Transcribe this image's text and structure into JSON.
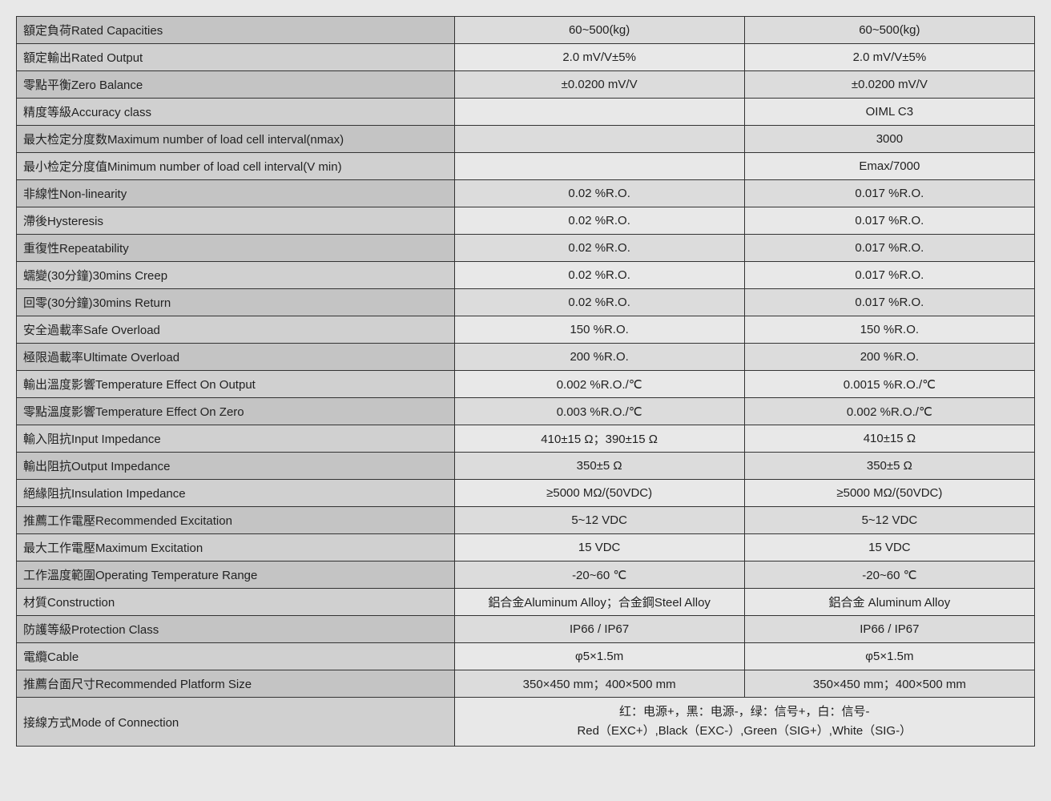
{
  "table": {
    "colwidths": [
      "43%",
      "28.5%",
      "28.5%"
    ],
    "border_color": "#333333",
    "row_bg_light": "#e8e8e8",
    "row_bg_dark": "#dcdcdc",
    "label_bg_light": "#d0d0d0",
    "label_bg_dark": "#c4c4c4",
    "font_size": 15,
    "rows": [
      {
        "shade": true,
        "label": "額定負荷Rated Capacities",
        "v1": "60~500(kg)",
        "v2": "60~500(kg)"
      },
      {
        "shade": false,
        "label": "額定輸出Rated Output",
        "v1": "2.0 mV/V±5%",
        "v2": "2.0 mV/V±5%"
      },
      {
        "shade": true,
        "label": "零點平衡Zero Balance",
        "v1": "±0.0200 mV/V",
        "v2": "±0.0200 mV/V"
      },
      {
        "shade": false,
        "label": "精度等級Accuracy class",
        "v1": "",
        "v2": "OIML C3"
      },
      {
        "shade": true,
        "label": "最大检定分度数Maximum number of load cell interval(nmax)",
        "v1": "",
        "v2": "3000"
      },
      {
        "shade": false,
        "label": "最小检定分度值Minimum number of load cell interval(V min)",
        "v1": "",
        "v2": "Emax/7000"
      },
      {
        "shade": true,
        "label": "非線性Non-linearity",
        "v1": "0.02 %R.O.",
        "v2": "0.017 %R.O."
      },
      {
        "shade": false,
        "label": "滯後Hysteresis",
        "v1": "0.02 %R.O.",
        "v2": "0.017 %R.O."
      },
      {
        "shade": true,
        "label": "重復性Repeatability",
        "v1": "0.02 %R.O.",
        "v2": "0.017 %R.O."
      },
      {
        "shade": false,
        "label": "蠕變(30分鐘)30mins Creep",
        "v1": "0.02 %R.O.",
        "v2": "0.017 %R.O."
      },
      {
        "shade": true,
        "label": "回零(30分鐘)30mins Return",
        "v1": "0.02 %R.O.",
        "v2": "0.017 %R.O."
      },
      {
        "shade": false,
        "label": "安全過載率Safe Overload",
        "v1": "150 %R.O.",
        "v2": "150 %R.O."
      },
      {
        "shade": true,
        "label": "極限過載率Ultimate Overload",
        "v1": "200 %R.O.",
        "v2": "200 %R.O."
      },
      {
        "shade": false,
        "label": "輸出溫度影響Temperature Effect On Output",
        "v1": "0.002 %R.O./℃",
        "v2": "0.0015 %R.O./℃"
      },
      {
        "shade": true,
        "label": "零點溫度影響Temperature Effect On Zero",
        "v1": "0.003 %R.O./℃",
        "v2": "0.002 %R.O./℃"
      },
      {
        "shade": false,
        "label": "輸入阻抗Input Impedance",
        "v1": "410±15 Ω；390±15 Ω",
        "v2": "410±15 Ω"
      },
      {
        "shade": true,
        "label": "輸出阻抗Output Impedance",
        "v1": "350±5 Ω",
        "v2": "350±5 Ω"
      },
      {
        "shade": false,
        "label": "絕緣阻抗Insulation Impedance",
        "v1": "≥5000 MΩ/(50VDC)",
        "v2": "≥5000 MΩ/(50VDC)"
      },
      {
        "shade": true,
        "label": "推薦工作電壓Recommended Excitation",
        "v1": "5~12 VDC",
        "v2": "5~12 VDC"
      },
      {
        "shade": false,
        "label": "最大工作電壓Maximum Excitation",
        "v1": "15 VDC",
        "v2": "15 VDC"
      },
      {
        "shade": true,
        "label": "工作溫度範圍Operating Temperature Range",
        "v1": "-20~60 ℃",
        "v2": "-20~60 ℃"
      },
      {
        "shade": false,
        "label": "材質Construction",
        "v1": "鋁合金Aluminum Alloy；合金鋼Steel Alloy",
        "v2": "鋁合金 Aluminum Alloy"
      },
      {
        "shade": true,
        "label": "防護等級Protection Class",
        "v1": "IP66 / IP67",
        "v2": "IP66 / IP67"
      },
      {
        "shade": false,
        "label": "電纜Cable",
        "v1": "φ5×1.5m",
        "v2": "φ5×1.5m"
      },
      {
        "shade": true,
        "label": "推薦台面尺寸Recommended Platform Size",
        "v1": "350×450 mm；400×500 mm",
        "v2": "350×450 mm；400×500 mm"
      }
    ],
    "last_row": {
      "shade": false,
      "label": "接線方式Mode of Connection",
      "line1": "红：电源+，黑：电源-，绿：信号+，白：信号-",
      "line2": "Red（EXC+）,Black（EXC-）,Green（SIG+）,White（SIG-）"
    }
  }
}
